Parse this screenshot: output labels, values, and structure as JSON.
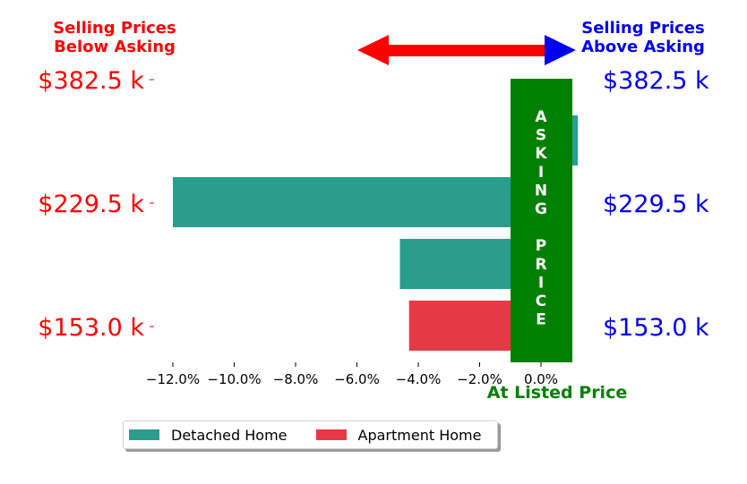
{
  "header_left": {
    "line1": "Selling Prices",
    "line2": "Below Asking"
  },
  "header_right": {
    "line1": "Selling Prices",
    "line2": "Above Asking"
  },
  "asking_label": "ASKING PRICE",
  "at_listed_label": "At Listed Price",
  "colors": {
    "below": "#ff0000",
    "above": "#0000ee",
    "asking": "#008000",
    "detached": "#2a9d8f",
    "apartment": "#e63946"
  },
  "chart_data": {
    "type": "bar",
    "orientation": "horizontal",
    "xlabel": "",
    "ylabel": "",
    "x_ticks": [
      "−12.0%",
      "−10.0%",
      "−8.0%",
      "−6.0%",
      "−4.0%",
      "−2.0%",
      "0.0%"
    ],
    "x_tick_values": [
      -12,
      -10,
      -8,
      -6,
      -4,
      -2,
      0
    ],
    "xlim": [
      -12.9,
      1.2
    ],
    "y_tick_labels": [
      "$382.5 k",
      "$229.5 k",
      "$153.0 k"
    ],
    "bars": [
      {
        "series": "Detached Home",
        "value": 1.2
      },
      {
        "series": "Detached Home",
        "value": -12.0
      },
      {
        "series": "Detached Home",
        "value": -4.6
      },
      {
        "series": "Apartment Home",
        "value": -4.3
      }
    ],
    "series": [
      {
        "name": "Detached Home",
        "color": "#2a9d8f"
      },
      {
        "name": "Apartment Home",
        "color": "#e63946"
      }
    ],
    "legend_position": "bottom-left",
    "grid": false
  }
}
